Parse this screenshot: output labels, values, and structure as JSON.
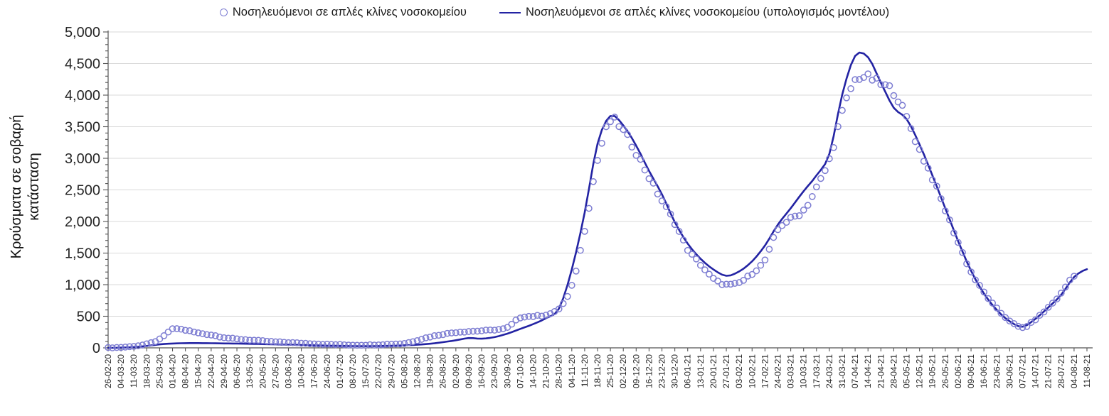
{
  "chart_data": {
    "type": "line",
    "subtype": "scatter-observed-vs-model-line",
    "title": "",
    "ylabel": "Κρούσματα σε σοβαρή\nκατάσταση",
    "xlabel": "",
    "ylim": [
      0,
      5000
    ],
    "ytick_step": 500,
    "ytick_minor_step": 100,
    "grid": "horizontal",
    "legend_position": "top-center",
    "colors": {
      "observed_marker": "#7d7dd2",
      "model_line": "#2323a3",
      "gridline": "#d9d9d9",
      "axis": "#555555",
      "tick_text": "#262626"
    },
    "categories": [
      "26-02-20",
      "04-03-20",
      "11-03-20",
      "18-03-20",
      "25-03-20",
      "01-04-20",
      "08-04-20",
      "15-04-20",
      "22-04-20",
      "29-04-20",
      "06-05-20",
      "13-05-20",
      "20-05-20",
      "27-05-20",
      "03-06-20",
      "10-06-20",
      "17-06-20",
      "24-06-20",
      "01-07-20",
      "08-07-20",
      "15-07-20",
      "22-07-20",
      "29-07-20",
      "05-08-20",
      "12-08-20",
      "19-08-20",
      "26-08-20",
      "02-09-20",
      "09-09-20",
      "16-09-20",
      "23-09-20",
      "30-09-20",
      "07-10-20",
      "14-10-20",
      "21-10-20",
      "28-10-20",
      "04-11-20",
      "11-11-20",
      "18-11-20",
      "25-11-20",
      "02-12-20",
      "09-12-20",
      "16-12-20",
      "23-12-20",
      "30-12-20",
      "06-01-21",
      "13-01-21",
      "20-01-21",
      "27-01-21",
      "03-02-21",
      "10-02-21",
      "17-02-21",
      "24-02-21",
      "03-03-21",
      "10-03-21",
      "17-03-21",
      "24-03-21",
      "31-03-21",
      "07-04-21",
      "14-04-21",
      "21-04-21",
      "28-04-21",
      "05-05-21",
      "12-05-21",
      "19-05-21",
      "26-05-21",
      "02-06-21",
      "09-06-21",
      "16-06-21",
      "23-06-21",
      "30-06-21",
      "07-07-21",
      "14-07-21",
      "21-07-21",
      "28-07-21",
      "04-08-21",
      "11-08-21"
    ],
    "series": [
      {
        "name": "Νοσηλευόμενοι σε απλές κλίνες νοσοκομείου",
        "style": "scatter",
        "marker": "open-circle",
        "color": "#7d7dd2",
        "values": [
          2,
          8,
          25,
          60,
          135,
          295,
          280,
          235,
          205,
          165,
          140,
          125,
          110,
          95,
          85,
          75,
          65,
          55,
          50,
          45,
          45,
          50,
          60,
          70,
          120,
          175,
          215,
          245,
          260,
          270,
          285,
          320,
          480,
          500,
          525,
          620,
          975,
          1870,
          2970,
          3590,
          3430,
          3090,
          2700,
          2330,
          1980,
          1560,
          1320,
          1090,
          1000,
          1030,
          1180,
          1390,
          1870,
          2040,
          2180,
          2530,
          2980,
          3720,
          4230,
          4280,
          4170,
          4050,
          3640,
          3130,
          2690,
          2180,
          1670,
          1200,
          880,
          620,
          430,
          320,
          450,
          640,
          860,
          1150,
          null
        ]
      },
      {
        "name": "Νοσηλευόμενοι σε απλές κλίνες νοσοκομείου (υπολογισμός μοντέλου)",
        "style": "line",
        "color": "#2323a3",
        "values": [
          0,
          3,
          12,
          30,
          55,
          68,
          74,
          75,
          73,
          70,
          68,
          64,
          60,
          55,
          50,
          45,
          40,
          35,
          31,
          28,
          27,
          29,
          33,
          40,
          50,
          65,
          90,
          120,
          155,
          145,
          170,
          225,
          300,
          375,
          470,
          620,
          1240,
          2140,
          3230,
          3670,
          3520,
          3200,
          2800,
          2430,
          1990,
          1650,
          1410,
          1240,
          1140,
          1210,
          1370,
          1620,
          1950,
          2210,
          2480,
          2730,
          3070,
          4010,
          4620,
          4600,
          4195,
          3800,
          3620,
          3220,
          2730,
          2210,
          1690,
          1220,
          860,
          600,
          420,
          335,
          460,
          640,
          840,
          1120,
          1245
        ]
      }
    ]
  }
}
